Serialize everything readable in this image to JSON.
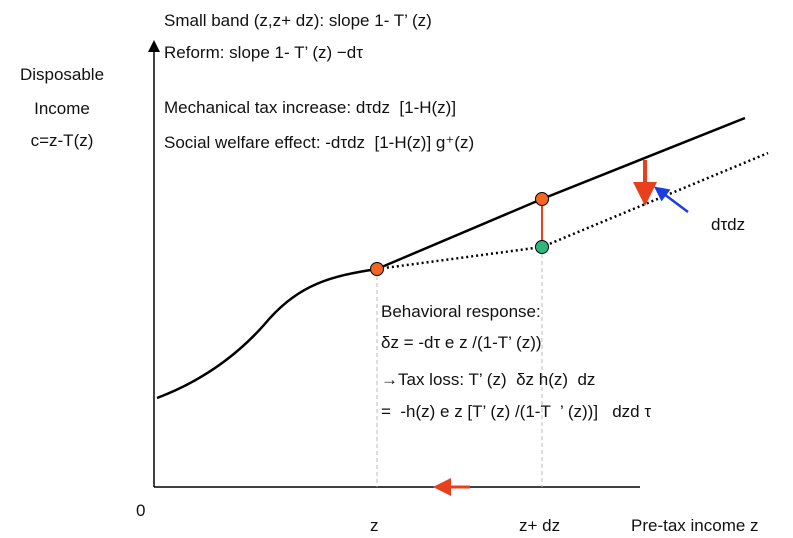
{
  "origin_label": "0",
  "y_axis_label": [
    "Disposable",
    "Income",
    "c=z-T(z)"
  ],
  "x_axis_label": "Pre-tax income z",
  "x_ticks": {
    "z": "z",
    "z_dz": "z+ dz"
  },
  "top_text": {
    "line1": "Small band (z,z+ dz): slope 1- T’ (z)",
    "line2": "Reform: slope 1- T’ (z) −dτ",
    "line3": "Mechanical tax increase: dτdz  [1-H(z)]",
    "line4": "Social welfare effect: -dτdz  [1-H(z)] g⁺(z)"
  },
  "dtau_label": "dτdz",
  "behavioral": {
    "title": "Behavioral response:",
    "line1": "δz = -dτ e z /(1-T’ (z))",
    "line2": "→Tax loss: T’ (z)  δz h(z)  dz",
    "line3": "=  -h(z) e z [T’ (z) /(1-T  ’ (z))]   dzd τ"
  },
  "colors": {
    "axis": "#000000",
    "curve": "#000000",
    "red_arrow": "#e8401c",
    "blue_arrow": "#1a3ee0",
    "orange_point": "#f26522",
    "teal_point": "#2db87a",
    "guide": "#bbbbbb"
  }
}
